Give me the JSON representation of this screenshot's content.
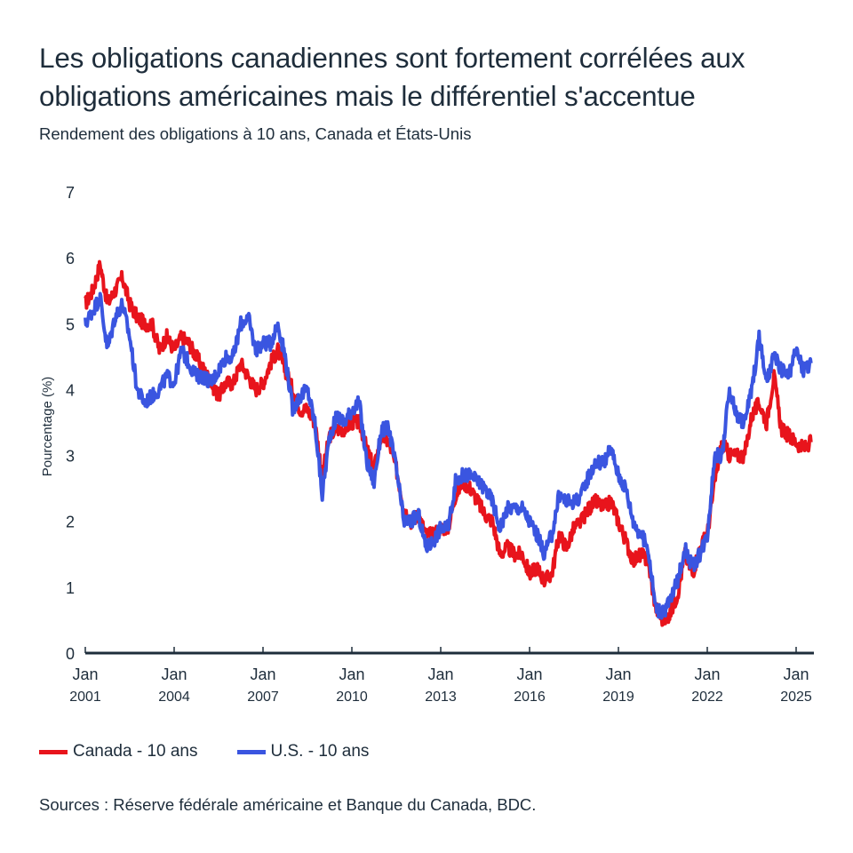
{
  "header": {
    "title": "Les obligations canadiennes sont fortement corrélées aux obligations américaines mais le différentiel s'accentue",
    "subtitle": "Rendement des obligations à 10 ans, Canada et États-Unis"
  },
  "legend": [
    {
      "label": "Canada - 10 ans",
      "color": "#e8141c"
    },
    {
      "label": "U.S. - 10 ans",
      "color": "#3a55e0"
    }
  ],
  "source": "Sources : Réserve fédérale américaine et Banque du Canada, BDC.",
  "chart_data": {
    "type": "line",
    "title": "Les obligations canadiennes sont fortement corrélées aux obligations américaines mais le différentiel s'accentue",
    "subtitle": "Rendement des obligations à 10 ans, Canada et États-Unis",
    "xlabel": "",
    "ylabel": "Pourcentage (%)",
    "ylim": [
      0,
      7
    ],
    "xlim": [
      2001.0,
      2025.6
    ],
    "yticks": [
      0,
      1,
      2,
      3,
      4,
      5,
      6,
      7
    ],
    "xticks": [
      {
        "value": 2001,
        "label": [
          "Jan",
          "2001"
        ]
      },
      {
        "value": 2004,
        "label": [
          "Jan",
          "2004"
        ]
      },
      {
        "value": 2007,
        "label": [
          "Jan",
          "2007"
        ]
      },
      {
        "value": 2010,
        "label": [
          "Jan",
          "2010"
        ]
      },
      {
        "value": 2013,
        "label": [
          "Jan",
          "2013"
        ]
      },
      {
        "value": 2016,
        "label": [
          "Jan",
          "2016"
        ]
      },
      {
        "value": 2019,
        "label": [
          "Jan",
          "2019"
        ]
      },
      {
        "value": 2022,
        "label": [
          "Jan",
          "2022"
        ]
      },
      {
        "value": 2025,
        "label": [
          "Jan",
          "2025"
        ]
      }
    ],
    "grid": false,
    "legend_position": "bottom-left",
    "x": [
      2001.0,
      2001.25,
      2001.5,
      2001.75,
      2002.0,
      2002.25,
      2002.5,
      2002.75,
      2003.0,
      2003.25,
      2003.5,
      2003.75,
      2004.0,
      2004.25,
      2004.5,
      2004.75,
      2005.0,
      2005.25,
      2005.5,
      2005.75,
      2006.0,
      2006.25,
      2006.5,
      2006.75,
      2007.0,
      2007.25,
      2007.5,
      2007.75,
      2008.0,
      2008.25,
      2008.5,
      2008.75,
      2009.0,
      2009.25,
      2009.5,
      2009.75,
      2010.0,
      2010.25,
      2010.5,
      2010.75,
      2011.0,
      2011.25,
      2011.5,
      2011.75,
      2012.0,
      2012.25,
      2012.5,
      2012.75,
      2013.0,
      2013.25,
      2013.5,
      2013.75,
      2014.0,
      2014.25,
      2014.5,
      2014.75,
      2015.0,
      2015.25,
      2015.5,
      2015.75,
      2016.0,
      2016.25,
      2016.5,
      2016.75,
      2017.0,
      2017.25,
      2017.5,
      2017.75,
      2018.0,
      2018.25,
      2018.5,
      2018.75,
      2019.0,
      2019.25,
      2019.5,
      2019.75,
      2020.0,
      2020.25,
      2020.5,
      2020.75,
      2021.0,
      2021.25,
      2021.5,
      2021.75,
      2022.0,
      2022.25,
      2022.5,
      2022.75,
      2023.0,
      2023.25,
      2023.5,
      2023.75,
      2024.0,
      2024.25,
      2024.5,
      2024.75,
      2025.0,
      2025.25,
      2025.5
    ],
    "series": [
      {
        "name": "Canada - 10 ans",
        "color": "#e8141c",
        "values": [
          5.3,
          5.5,
          5.9,
          5.3,
          5.5,
          5.7,
          5.3,
          5.1,
          5.0,
          5.0,
          4.6,
          4.8,
          4.6,
          4.8,
          4.7,
          4.5,
          4.3,
          4.1,
          3.9,
          4.1,
          4.1,
          4.4,
          4.2,
          4.0,
          4.1,
          4.4,
          4.6,
          4.3,
          4.0,
          3.7,
          3.7,
          3.5,
          2.7,
          3.3,
          3.4,
          3.4,
          3.5,
          3.5,
          3.1,
          2.8,
          3.3,
          3.2,
          2.8,
          2.2,
          2.0,
          2.1,
          1.8,
          1.8,
          1.9,
          1.9,
          2.4,
          2.6,
          2.5,
          2.3,
          2.1,
          2.0,
          1.5,
          1.6,
          1.5,
          1.5,
          1.2,
          1.3,
          1.1,
          1.2,
          1.8,
          1.6,
          1.9,
          2.0,
          2.2,
          2.3,
          2.2,
          2.3,
          2.0,
          1.7,
          1.4,
          1.5,
          1.4,
          0.7,
          0.5,
          0.6,
          0.9,
          1.5,
          1.2,
          1.6,
          1.8,
          2.6,
          3.2,
          3.0,
          3.0,
          3.0,
          3.6,
          3.8,
          3.5,
          4.2,
          3.4,
          3.3,
          3.2,
          3.1,
          3.2
        ]
      },
      {
        "name": "U.S. - 10 ans",
        "color": "#3a55e0",
        "values": [
          5.0,
          5.2,
          5.4,
          4.6,
          5.1,
          5.3,
          4.8,
          4.0,
          3.8,
          3.9,
          4.0,
          4.2,
          4.1,
          4.6,
          4.4,
          4.2,
          4.2,
          4.1,
          4.3,
          4.5,
          4.5,
          5.0,
          5.1,
          4.6,
          4.7,
          4.7,
          5.0,
          4.5,
          3.7,
          3.9,
          4.0,
          3.5,
          2.4,
          3.3,
          3.6,
          3.5,
          3.7,
          3.8,
          2.9,
          2.6,
          3.4,
          3.4,
          2.8,
          2.0,
          2.0,
          2.1,
          1.6,
          1.7,
          1.9,
          1.9,
          2.6,
          2.7,
          2.7,
          2.6,
          2.5,
          2.3,
          1.9,
          2.2,
          2.2,
          2.2,
          2.0,
          1.8,
          1.5,
          1.8,
          2.4,
          2.3,
          2.3,
          2.4,
          2.7,
          2.9,
          2.9,
          3.1,
          2.7,
          2.5,
          2.0,
          1.8,
          1.6,
          0.7,
          0.6,
          0.8,
          1.1,
          1.6,
          1.3,
          1.5,
          1.8,
          3.0,
          3.0,
          4.0,
          3.6,
          3.5,
          4.0,
          4.8,
          4.1,
          4.5,
          4.3,
          4.2,
          4.6,
          4.3,
          4.4
        ]
      }
    ]
  }
}
